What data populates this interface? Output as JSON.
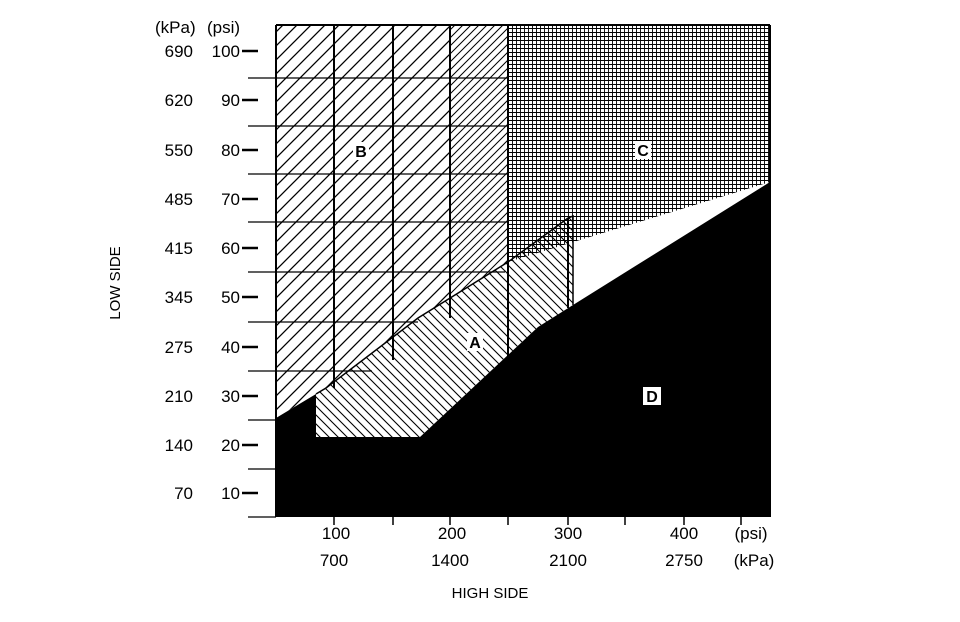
{
  "low_side": {
    "title": "LOW SIDE",
    "unit_kpa": "(kPa)",
    "unit_psi": "(psi)",
    "ticks": [
      {
        "psi": "100",
        "kpa": "690"
      },
      {
        "psi": "90",
        "kpa": "620"
      },
      {
        "psi": "80",
        "kpa": "550"
      },
      {
        "psi": "70",
        "kpa": "485"
      },
      {
        "psi": "60",
        "kpa": "415"
      },
      {
        "psi": "50",
        "kpa": "345"
      },
      {
        "psi": "40",
        "kpa": "275"
      },
      {
        "psi": "30",
        "kpa": "210"
      },
      {
        "psi": "20",
        "kpa": "140"
      },
      {
        "psi": "10",
        "kpa": "70"
      }
    ]
  },
  "high_side": {
    "title": "HIGH SIDE",
    "unit_psi": "(psi)",
    "unit_kpa": "(kPa)",
    "ticks": [
      {
        "psi": "100",
        "kpa": "700"
      },
      {
        "psi": "200",
        "kpa": "1400"
      },
      {
        "psi": "300",
        "kpa": "2100"
      },
      {
        "psi": "400",
        "kpa": "2750"
      }
    ]
  },
  "zones": {
    "a": "A",
    "b": "B",
    "c": "C",
    "d": "D"
  }
}
